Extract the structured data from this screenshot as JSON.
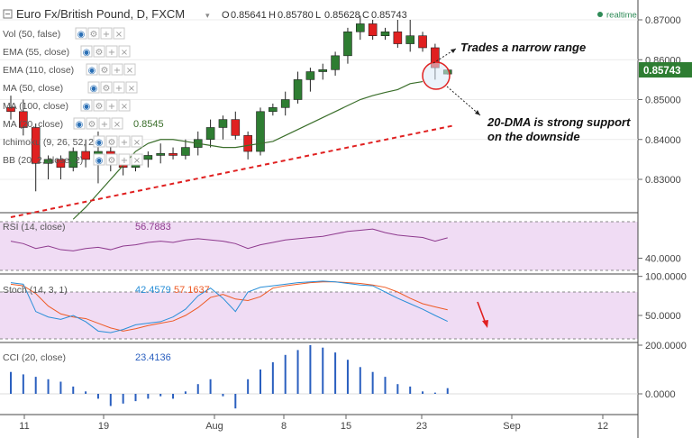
{
  "header": {
    "title": "Euro Fx/British Pound, D, FXCM",
    "ohlc": [
      {
        "label": "O",
        "value": "0.85641"
      },
      {
        "label": "H",
        "value": "0.85780"
      },
      {
        "label": "L",
        "value": "0.85628"
      },
      {
        "label": "C",
        "value": "0.85743"
      }
    ],
    "realtime_label": "realtime",
    "realtime_color": "#2e8b57"
  },
  "indicators": [
    {
      "label": "Vol (50, false)"
    },
    {
      "label": "EMA (55, close)"
    },
    {
      "label": "EMA (110, close)"
    },
    {
      "label": "MA (50, close)"
    },
    {
      "label": "MA (100, close)"
    },
    {
      "label": "MA (20, close)",
      "value": "0.8545"
    },
    {
      "label": "Ichimoku (9, 26, 52, 26)"
    },
    {
      "label": "BB (20, 2, close, 2)"
    }
  ],
  "annotations": {
    "narrow_range": "Trades a narrow range",
    "support_line1": "20-DMA is strong support",
    "support_line2": "on the downside"
  },
  "price_badge": "0.85743",
  "rsi": {
    "label": "RSI (14, close)",
    "value": "56.7883"
  },
  "stoch": {
    "label": "Stoch (14, 3, 1)",
    "k": "42.4579",
    "d": "57.1637"
  },
  "cci": {
    "label": "CCI (20, close)",
    "value": "23.4136"
  },
  "colors": {
    "up": "#2e7d32",
    "down": "#e02020",
    "ma": "#3a6e2a",
    "trend": "#e02020",
    "rsi": "#8e3a8e",
    "stoch_k": "#2a8fd8",
    "stoch_d": "#ee5a24",
    "cci": "#2a5fbf",
    "band": "#f0dcf4",
    "badge": "#2e7d32"
  },
  "chart_data": {
    "type": "candlestick",
    "x_tick_labels": [
      "11",
      "19",
      "Aug",
      "8",
      "15",
      "23",
      "Sep",
      "12"
    ],
    "price_ticks": [
      "0.87000",
      "0.86000",
      "0.85000",
      "0.84000",
      "0.83000"
    ],
    "price_ylim": [
      0.8215,
      0.8745
    ],
    "candles": [
      {
        "o": 0.848,
        "h": 0.851,
        "l": 0.845,
        "c": 0.847
      },
      {
        "o": 0.847,
        "h": 0.85,
        "l": 0.841,
        "c": 0.843
      },
      {
        "o": 0.843,
        "h": 0.844,
        "l": 0.827,
        "c": 0.834
      },
      {
        "o": 0.834,
        "h": 0.836,
        "l": 0.83,
        "c": 0.835
      },
      {
        "o": 0.835,
        "h": 0.836,
        "l": 0.83,
        "c": 0.833
      },
      {
        "o": 0.833,
        "h": 0.838,
        "l": 0.832,
        "c": 0.837
      },
      {
        "o": 0.837,
        "h": 0.84,
        "l": 0.833,
        "c": 0.835
      },
      {
        "o": 0.835,
        "h": 0.842,
        "l": 0.829,
        "c": 0.837
      },
      {
        "o": 0.837,
        "h": 0.84,
        "l": 0.832,
        "c": 0.834
      },
      {
        "o": 0.834,
        "h": 0.835,
        "l": 0.831,
        "c": 0.833
      },
      {
        "o": 0.833,
        "h": 0.836,
        "l": 0.832,
        "c": 0.835
      },
      {
        "o": 0.835,
        "h": 0.837,
        "l": 0.833,
        "c": 0.836
      },
      {
        "o": 0.836,
        "h": 0.839,
        "l": 0.834,
        "c": 0.8365
      },
      {
        "o": 0.8365,
        "h": 0.838,
        "l": 0.835,
        "c": 0.836
      },
      {
        "o": 0.836,
        "h": 0.84,
        "l": 0.835,
        "c": 0.838
      },
      {
        "o": 0.838,
        "h": 0.842,
        "l": 0.836,
        "c": 0.84
      },
      {
        "o": 0.84,
        "h": 0.845,
        "l": 0.838,
        "c": 0.843
      },
      {
        "o": 0.843,
        "h": 0.846,
        "l": 0.84,
        "c": 0.845
      },
      {
        "o": 0.845,
        "h": 0.847,
        "l": 0.84,
        "c": 0.841
      },
      {
        "o": 0.841,
        "h": 0.842,
        "l": 0.835,
        "c": 0.837
      },
      {
        "o": 0.837,
        "h": 0.848,
        "l": 0.836,
        "c": 0.847
      },
      {
        "o": 0.847,
        "h": 0.849,
        "l": 0.846,
        "c": 0.848
      },
      {
        "o": 0.848,
        "h": 0.852,
        "l": 0.846,
        "c": 0.85
      },
      {
        "o": 0.85,
        "h": 0.857,
        "l": 0.849,
        "c": 0.855
      },
      {
        "o": 0.855,
        "h": 0.858,
        "l": 0.852,
        "c": 0.857
      },
      {
        "o": 0.857,
        "h": 0.859,
        "l": 0.855,
        "c": 0.8575
      },
      {
        "o": 0.8575,
        "h": 0.862,
        "l": 0.856,
        "c": 0.861
      },
      {
        "o": 0.861,
        "h": 0.868,
        "l": 0.859,
        "c": 0.867
      },
      {
        "o": 0.867,
        "h": 0.871,
        "l": 0.865,
        "c": 0.869
      },
      {
        "o": 0.869,
        "h": 0.87,
        "l": 0.865,
        "c": 0.866
      },
      {
        "o": 0.866,
        "h": 0.868,
        "l": 0.865,
        "c": 0.867
      },
      {
        "o": 0.867,
        "h": 0.87,
        "l": 0.863,
        "c": 0.864
      },
      {
        "o": 0.864,
        "h": 0.87,
        "l": 0.862,
        "c": 0.866
      },
      {
        "o": 0.866,
        "h": 0.867,
        "l": 0.862,
        "c": 0.863
      },
      {
        "o": 0.863,
        "h": 0.864,
        "l": 0.855,
        "c": 0.858
      },
      {
        "o": 0.85641,
        "h": 0.8578,
        "l": 0.85628,
        "c": 0.85743
      }
    ],
    "ma20": [
      0.82,
      0.823,
      0.8265,
      0.83,
      0.8335,
      0.837,
      0.839,
      0.84,
      0.84,
      0.8395,
      0.839,
      0.8385,
      0.838,
      0.838,
      0.8385,
      0.839,
      0.8395,
      0.841,
      0.8425,
      0.844,
      0.8455,
      0.847,
      0.8485,
      0.85,
      0.851,
      0.8518,
      0.8525,
      0.854,
      0.8545
    ],
    "trendline": [
      {
        "x": 0,
        "y": 0.8205
      },
      {
        "x": 35.5,
        "y": 0.8435
      }
    ],
    "rsi_ticks": [
      "40.0000"
    ],
    "rsi_values": [
      54,
      52,
      48,
      50,
      47,
      46,
      48,
      49,
      47,
      50,
      51,
      53,
      54,
      53,
      55,
      56,
      55,
      54,
      52,
      48,
      51,
      53,
      55,
      56,
      57,
      58,
      60,
      62,
      63,
      64,
      61,
      59,
      58,
      57,
      54,
      56.79
    ],
    "stoch_ticks": [
      "100.0000",
      "50.0000"
    ],
    "stoch_k": [
      92,
      90,
      55,
      48,
      45,
      50,
      42,
      30,
      28,
      32,
      38,
      40,
      42,
      48,
      58,
      75,
      85,
      72,
      55,
      80,
      86,
      88,
      90,
      92,
      93,
      94,
      93,
      91,
      89,
      88,
      80,
      72,
      65,
      58,
      50,
      42.46
    ],
    "stoch_d": [
      90,
      88,
      78,
      62,
      52,
      48,
      46,
      40,
      34,
      30,
      33,
      37,
      40,
      43,
      50,
      60,
      73,
      77,
      71,
      69,
      74,
      85,
      88,
      90,
      92,
      93,
      93,
      92,
      91,
      89,
      86,
      80,
      72,
      65,
      61,
      57.16
    ],
    "cci_ticks": [
      "200.0000",
      "0.0000"
    ],
    "cci_values": [
      90,
      80,
      70,
      60,
      50,
      30,
      10,
      -20,
      -50,
      -40,
      -30,
      -20,
      -10,
      -20,
      10,
      40,
      60,
      -10,
      -60,
      60,
      100,
      130,
      160,
      180,
      200,
      190,
      170,
      140,
      110,
      90,
      70,
      40,
      30,
      10,
      5,
      23.41
    ]
  }
}
